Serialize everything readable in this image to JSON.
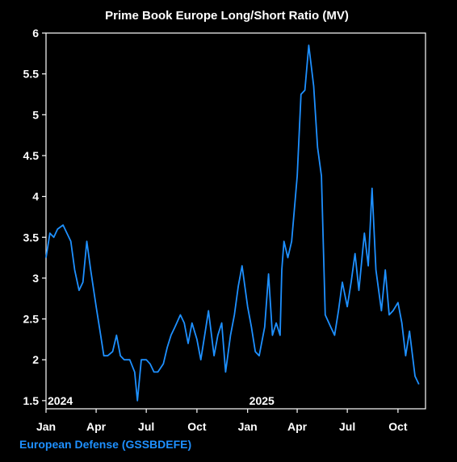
{
  "chart_data": {
    "type": "line",
    "title": "Prime Book Europe Long/Short Ratio (MV)",
    "ylim": [
      1.4,
      6.0
    ],
    "yticks": [
      "1.5",
      "2",
      "2.5",
      "3",
      "3.5",
      "4",
      "4.5",
      "5",
      "5.5",
      "6"
    ],
    "xticks": [
      {
        "label": "Jan",
        "x": "2024-01"
      },
      {
        "label": "Apr",
        "x": "2024-04"
      },
      {
        "label": "Jul",
        "x": "2024-07"
      },
      {
        "label": "Oct",
        "x": "2024-10"
      },
      {
        "label": "Jan",
        "x": "2025-01"
      },
      {
        "label": "Apr",
        "x": "2025-04"
      },
      {
        "label": "Jul",
        "x": "2025-07"
      },
      {
        "label": "Oct",
        "x": "2025-10"
      }
    ],
    "year_labels": [
      {
        "label": "2024",
        "x": "2024-01"
      },
      {
        "label": "2025",
        "x": "2025-01"
      }
    ],
    "grid": false,
    "legend_position": "bottom-left",
    "series": [
      {
        "name": "European Defense (GSSBDEFE)",
        "color": "#1e90ff",
        "x": [
          "2024-01-01",
          "2024-01-08",
          "2024-01-15",
          "2024-01-22",
          "2024-02-01",
          "2024-02-08",
          "2024-02-15",
          "2024-02-22",
          "2024-03-01",
          "2024-03-08",
          "2024-03-15",
          "2024-03-22",
          "2024-04-01",
          "2024-04-08",
          "2024-04-15",
          "2024-04-22",
          "2024-05-01",
          "2024-05-08",
          "2024-05-15",
          "2024-05-22",
          "2024-06-01",
          "2024-06-10",
          "2024-06-15",
          "2024-06-22",
          "2024-07-01",
          "2024-07-08",
          "2024-07-15",
          "2024-07-22",
          "2024-08-01",
          "2024-08-08",
          "2024-08-15",
          "2024-08-22",
          "2024-09-01",
          "2024-09-08",
          "2024-09-15",
          "2024-09-22",
          "2024-10-01",
          "2024-10-08",
          "2024-10-15",
          "2024-10-22",
          "2024-11-01",
          "2024-11-08",
          "2024-11-15",
          "2024-11-22",
          "2024-12-01",
          "2024-12-08",
          "2024-12-15",
          "2024-12-22",
          "2025-01-01",
          "2025-01-08",
          "2025-01-15",
          "2025-01-22",
          "2025-02-01",
          "2025-02-08",
          "2025-02-15",
          "2025-02-22",
          "2025-03-01",
          "2025-03-04",
          "2025-03-08",
          "2025-03-15",
          "2025-03-22",
          "2025-04-01",
          "2025-04-08",
          "2025-04-15",
          "2025-04-22",
          "2025-05-01",
          "2025-05-08",
          "2025-05-15",
          "2025-05-22",
          "2025-06-01",
          "2025-06-08",
          "2025-06-15",
          "2025-06-22",
          "2025-07-01",
          "2025-07-08",
          "2025-07-15",
          "2025-07-22",
          "2025-08-01",
          "2025-08-08",
          "2025-08-15",
          "2025-08-22",
          "2025-09-01",
          "2025-09-08",
          "2025-09-15",
          "2025-09-22",
          "2025-10-01",
          "2025-10-08",
          "2025-10-15",
          "2025-10-22",
          "2025-11-01",
          "2025-11-08"
        ],
        "values": [
          3.25,
          3.55,
          3.5,
          3.6,
          3.65,
          3.55,
          3.45,
          3.1,
          2.85,
          2.95,
          3.45,
          3.1,
          2.65,
          2.35,
          2.05,
          2.05,
          2.1,
          2.3,
          2.05,
          2.0,
          2.0,
          1.85,
          1.5,
          2.0,
          2.0,
          1.95,
          1.85,
          1.85,
          1.95,
          2.15,
          2.3,
          2.4,
          2.55,
          2.45,
          2.2,
          2.45,
          2.25,
          2.0,
          2.3,
          2.6,
          2.05,
          2.3,
          2.45,
          1.85,
          2.3,
          2.55,
          2.9,
          3.15,
          2.65,
          2.4,
          2.1,
          2.05,
          2.4,
          3.05,
          2.3,
          2.45,
          2.3,
          3.1,
          3.45,
          3.25,
          3.45,
          4.25,
          5.25,
          5.3,
          5.85,
          5.35,
          4.6,
          4.25,
          2.55,
          2.4,
          2.3,
          2.6,
          2.95,
          2.65,
          2.95,
          3.3,
          2.85,
          3.55,
          3.15,
          4.1,
          3.1,
          2.6,
          3.1,
          2.55,
          2.6,
          2.7,
          2.45,
          2.05,
          2.35,
          1.8,
          1.7
        ]
      }
    ]
  }
}
